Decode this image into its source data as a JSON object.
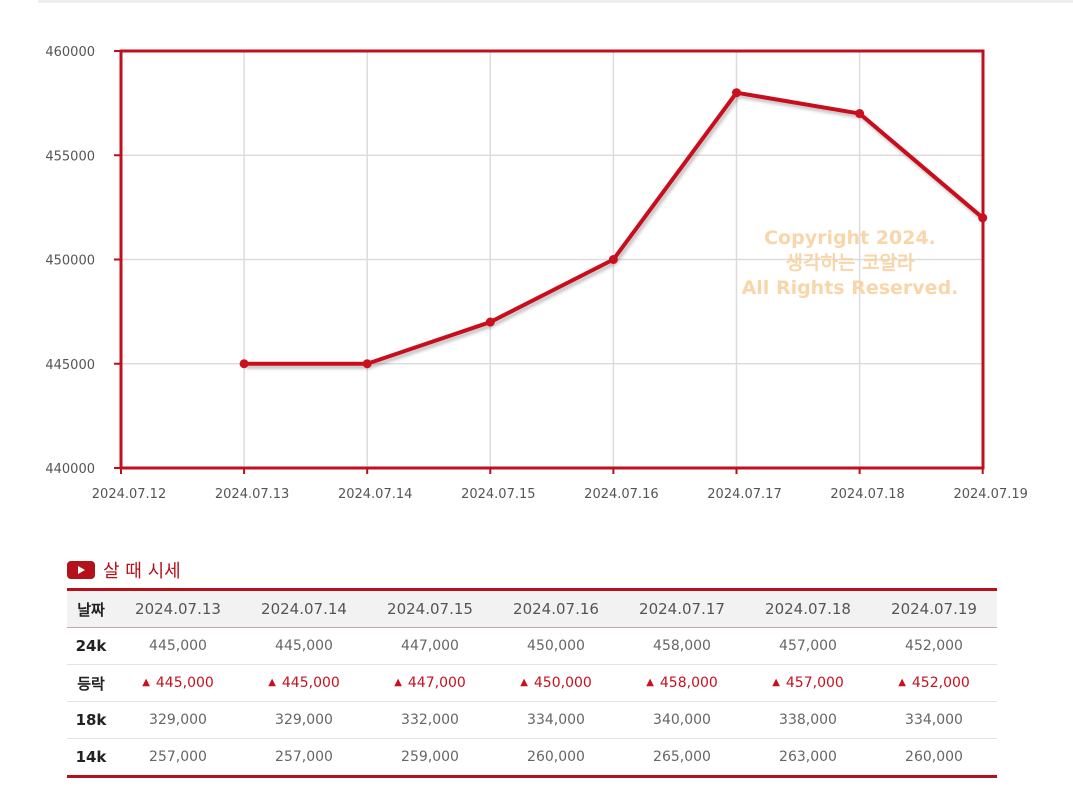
{
  "watermark": {
    "line1": "Copyright 2024.",
    "line2": "생각하는 코알라",
    "line3": "All Rights Reserved."
  },
  "chart_data": {
    "type": "line",
    "x": [
      "2024.07.12",
      "2024.07.13",
      "2024.07.14",
      "2024.07.15",
      "2024.07.16",
      "2024.07.17",
      "2024.07.18",
      "2024.07.19"
    ],
    "series": [
      {
        "values": [
          null,
          445000,
          445000,
          447000,
          450000,
          458000,
          457000,
          452000
        ],
        "color": "#c8101e"
      }
    ],
    "yticks": [
      "440000",
      "445000",
      "450000",
      "455000",
      "460000"
    ],
    "ylim": [
      440000,
      460000
    ],
    "grid": true,
    "title": "",
    "xlabel": "",
    "ylabel": ""
  },
  "table": {
    "section_title": "살 때 시세",
    "header_label": "날짜",
    "dates": [
      "2024.07.13",
      "2024.07.14",
      "2024.07.15",
      "2024.07.16",
      "2024.07.17",
      "2024.07.18",
      "2024.07.19"
    ],
    "rows": {
      "k24": {
        "label": "24k",
        "values": [
          "445,000",
          "445,000",
          "447,000",
          "450,000",
          "458,000",
          "457,000",
          "452,000"
        ]
      },
      "change": {
        "label": "등락",
        "arrow": "▲",
        "values": [
          "445,000",
          "445,000",
          "447,000",
          "450,000",
          "458,000",
          "457,000",
          "452,000"
        ]
      },
      "k18": {
        "label": "18k",
        "values": [
          "329,000",
          "329,000",
          "332,000",
          "334,000",
          "340,000",
          "338,000",
          "334,000"
        ]
      },
      "k14": {
        "label": "14k",
        "values": [
          "257,000",
          "257,000",
          "259,000",
          "260,000",
          "265,000",
          "263,000",
          "260,000"
        ]
      }
    }
  }
}
